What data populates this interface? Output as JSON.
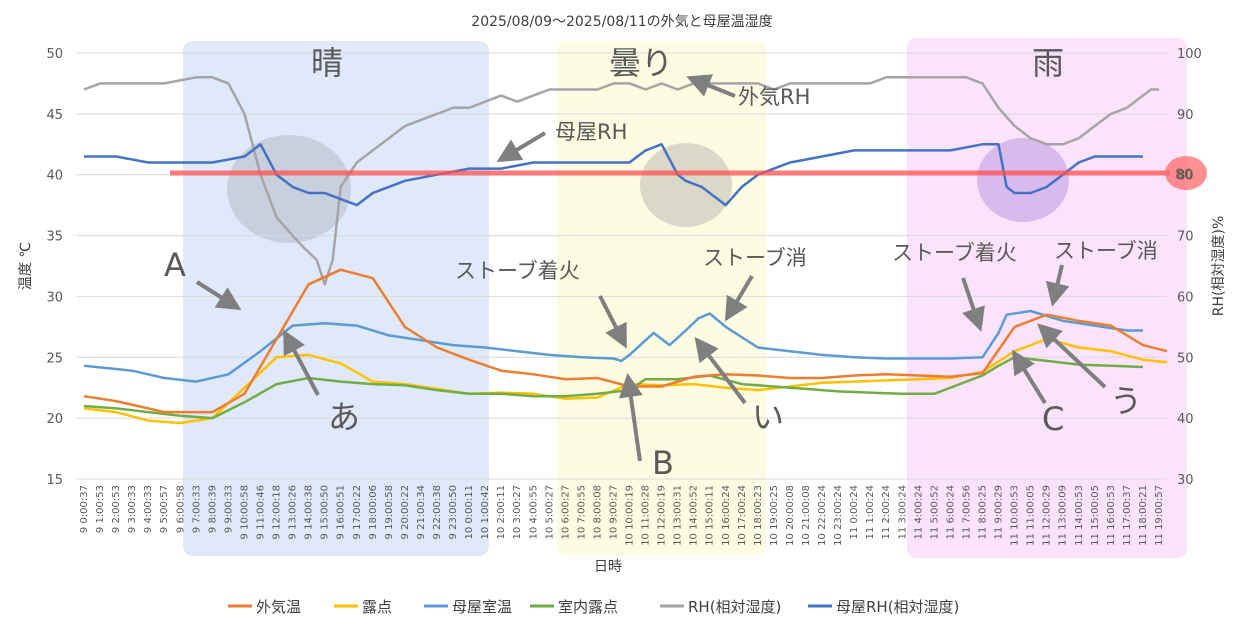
{
  "chart_data": {
    "type": "line",
    "title": "2025/08/09～2025/08/11の外気と母屋温湿度",
    "xlabel": "日時",
    "ylabel": "温度 ℃",
    "y2label": "RH(相対湿度)%",
    "ylim": [
      15,
      50
    ],
    "y2lim": [
      30,
      100
    ],
    "yticks": [
      "15",
      "20",
      "25",
      "30",
      "35",
      "40",
      "45",
      "50"
    ],
    "y2ticks": [
      "30",
      "40",
      "50",
      "60",
      "70",
      "80",
      "90",
      "100"
    ],
    "grid": "horizontal",
    "legend_position": "bottom",
    "x_tick_labels": [
      "9 0:00:37",
      "9 1:00:53",
      "9 2:00:53",
      "9 3:00:33",
      "9 4:00:33",
      "9 5:00:57",
      "9 6:00:58",
      "9 7:00:33",
      "9 8:00:39",
      "9 9:00:33",
      "9 10:00:58",
      "9 11:00:46",
      "9 12:00:18",
      "9 13:00:26",
      "9 14:00:38",
      "9 15:00:50",
      "9 16:00:51",
      "9 17:00:22",
      "9 18:00:06",
      "9 19:00:58",
      "9 20:00:22",
      "9 21:00:34",
      "9 22:00:38",
      "9 23:00:50",
      "10 0:00:11",
      "10 1:00:42",
      "10 2:00:11",
      "10 3:00:27",
      "10 4:00:55",
      "10 5:00:27",
      "10 6:00:27",
      "10 7:00:55",
      "10 8:00:08",
      "10 9:00:27",
      "10 10:00:19",
      "10 11:00:28",
      "10 12:00:19",
      "10 13:00:31",
      "10 14:00:52",
      "10 15:00:11",
      "10 16:00:24",
      "10 17:00:24",
      "10 18:00:23",
      "10 19:00:25",
      "10 20:00:08",
      "10 21:00:08",
      "10 22:00:24",
      "10 23:00:24",
      "11 0:00:24",
      "11 1:00:24",
      "11 2:00:24",
      "11 3:00:24",
      "11 4:00:24",
      "11 5:00:52",
      "11 6:00:24",
      "11 7:00:56",
      "11 8:00:25",
      "11 9:00:29",
      "11 10:00:53",
      "11 11:00:05",
      "11 12:00:29",
      "11 13:00:09",
      "11 14:00:53",
      "11 15:00:05",
      "11 16:00:53",
      "11 17:00:37",
      "11 18:00:21",
      "11 19:00:57"
    ],
    "series": [
      {
        "name": "外気温",
        "axis": "left",
        "color": "#ED7D31",
        "x": [
          0,
          2,
          5,
          8,
          10,
          12,
          14,
          16,
          18,
          20,
          22,
          24,
          26,
          28,
          30,
          32,
          34,
          36,
          38,
          40,
          42,
          44,
          46,
          48,
          50,
          52,
          54,
          56,
          58,
          60,
          62,
          64,
          66,
          67.5
        ],
        "values": [
          21.8,
          21.4,
          20.5,
          20.5,
          22,
          26.5,
          31,
          32.2,
          31.5,
          27.5,
          25.8,
          24.8,
          23.9,
          23.6,
          23.2,
          23.3,
          22.6,
          22.6,
          23.4,
          23.6,
          23.5,
          23.3,
          23.3,
          23.5,
          23.6,
          23.5,
          23.4,
          23.7,
          27.5,
          28.5,
          28,
          27.6,
          26,
          25.5
        ]
      },
      {
        "name": "露点",
        "axis": "left",
        "color": "#FFC000",
        "x": [
          0,
          2,
          4,
          6,
          8,
          10,
          12,
          14,
          16,
          18,
          20,
          22,
          24,
          26,
          28,
          30,
          32,
          34,
          36,
          38,
          40,
          42,
          44,
          46,
          48,
          50,
          52,
          54,
          56,
          58,
          60,
          62,
          64,
          66,
          67.5
        ],
        "values": [
          20.8,
          20.5,
          19.8,
          19.6,
          20,
          22.5,
          25,
          25.2,
          24.5,
          23,
          22.8,
          22.4,
          22,
          22.1,
          22,
          21.6,
          21.7,
          22.8,
          22.7,
          22.8,
          22.5,
          22.3,
          22.6,
          22.9,
          23,
          23.1,
          23.2,
          23.3,
          23.8,
          25.5,
          26.5,
          25.8,
          25.5,
          24.8,
          24.6
        ]
      },
      {
        "name": "母屋室温",
        "axis": "left",
        "color": "#5B9BD5",
        "x": [
          0,
          3,
          5,
          7,
          9,
          11,
          13,
          15,
          17,
          19,
          21,
          23,
          25,
          27,
          29,
          31,
          33,
          33.5,
          34,
          35.5,
          36.5,
          37.5,
          38.3,
          39,
          40,
          42,
          44,
          46,
          48,
          50,
          52,
          54,
          56,
          57,
          57.5,
          59,
          61,
          63,
          64,
          65,
          66
        ],
        "values": [
          24.3,
          23.9,
          23.3,
          23,
          23.6,
          25.5,
          27.6,
          27.8,
          27.6,
          26.8,
          26.4,
          26,
          25.8,
          25.5,
          25.2,
          25,
          24.9,
          24.7,
          25.2,
          27,
          26,
          27.2,
          28.2,
          28.6,
          27.5,
          25.8,
          25.5,
          25.2,
          25,
          24.9,
          24.9,
          24.9,
          25,
          27,
          28.5,
          28.8,
          28,
          27.6,
          27.4,
          27.2,
          27.2
        ]
      },
      {
        "name": "室内露点",
        "axis": "left",
        "color": "#70AD47",
        "x": [
          0,
          2,
          4,
          6,
          8,
          10,
          12,
          14,
          16,
          18,
          20,
          22,
          24,
          26,
          28,
          30,
          32,
          34,
          35,
          37,
          39,
          41,
          43,
          45,
          47,
          49,
          51,
          53,
          55,
          56,
          57,
          58,
          60,
          62,
          64,
          66
        ],
        "values": [
          21,
          20.8,
          20.5,
          20.2,
          20,
          21.3,
          22.8,
          23.3,
          23,
          22.8,
          22.7,
          22.3,
          22,
          22,
          21.8,
          21.8,
          22,
          22.3,
          23.2,
          23.2,
          23.5,
          22.8,
          22.6,
          22.4,
          22.2,
          22.1,
          22,
          22,
          23,
          23.5,
          24.3,
          25,
          24.7,
          24.4,
          24.3,
          24.2
        ]
      },
      {
        "name": "RH(相対湿度)",
        "axis": "right",
        "color": "#A5A5A5",
        "x": [
          0,
          1,
          3,
          5,
          7,
          8,
          9,
          10,
          11,
          12,
          13,
          13.7,
          14.5,
          15,
          15.5,
          16,
          17,
          18,
          19,
          20,
          21,
          22,
          23,
          24,
          25,
          26,
          27,
          28,
          29,
          30,
          31,
          32,
          33,
          34,
          35,
          36,
          37,
          38,
          39,
          40,
          41,
          42,
          43,
          44,
          45,
          46,
          47,
          48,
          49,
          50,
          51,
          52,
          53,
          54,
          55,
          56,
          57,
          58,
          59,
          60,
          61,
          62,
          63,
          64,
          65,
          66,
          66.5,
          67
        ],
        "values": [
          94,
          95,
          95,
          95,
          96,
          96,
          95,
          90,
          80,
          73,
          70,
          68,
          66,
          62,
          66,
          78,
          82,
          84,
          86,
          88,
          89,
          90,
          91,
          91,
          92,
          93,
          92,
          93,
          94,
          94,
          94,
          94,
          95,
          95,
          94,
          95,
          94,
          95,
          95,
          95,
          95,
          95,
          94,
          95,
          95,
          95,
          95,
          95,
          95,
          96,
          96,
          96,
          96,
          96,
          96,
          95,
          91,
          88,
          86,
          85,
          85,
          86,
          88,
          90,
          91,
          93,
          94,
          94
        ]
      },
      {
        "name": "母屋RH(相対湿度)",
        "axis": "right",
        "color": "#4472C4",
        "x": [
          0,
          2,
          4,
          6,
          8,
          10,
          11,
          12,
          13,
          14,
          15,
          16,
          17,
          18,
          19,
          20,
          22,
          24,
          26,
          28,
          30,
          32,
          34,
          35,
          36,
          37,
          37.5,
          38.5,
          39,
          40,
          41,
          42,
          44,
          46,
          48,
          50,
          52,
          54,
          56,
          57,
          57.5,
          58,
          59,
          60,
          61,
          62,
          63,
          64,
          65,
          66
        ],
        "values": [
          83,
          83,
          82,
          82,
          82,
          83,
          85,
          80,
          78,
          77,
          77,
          76,
          75,
          77,
          78,
          79,
          80,
          81,
          81,
          82,
          82,
          82,
          82,
          84,
          85,
          80,
          79,
          78,
          77,
          75,
          78,
          80,
          82,
          83,
          84,
          84,
          84,
          84,
          85,
          85,
          78,
          77,
          77,
          78,
          80,
          82,
          83,
          83,
          83,
          83
        ]
      }
    ],
    "annotations": {
      "regions": [
        "晴",
        "曇り",
        "雨"
      ],
      "reference_line_value": 80,
      "reference_line_label": "80",
      "series_labels": [
        "外気RH",
        "母屋RH"
      ],
      "stove_on_1": "ストーブ着火",
      "stove_off_1": "ストーブ消",
      "stove_on_2": "ストーブ着火",
      "stove_off_2": "ストーブ消",
      "letter_a": "A",
      "letter_b": "B",
      "letter_c": "C",
      "kana_a": "あ",
      "kana_i": "い",
      "kana_u": "う"
    }
  }
}
